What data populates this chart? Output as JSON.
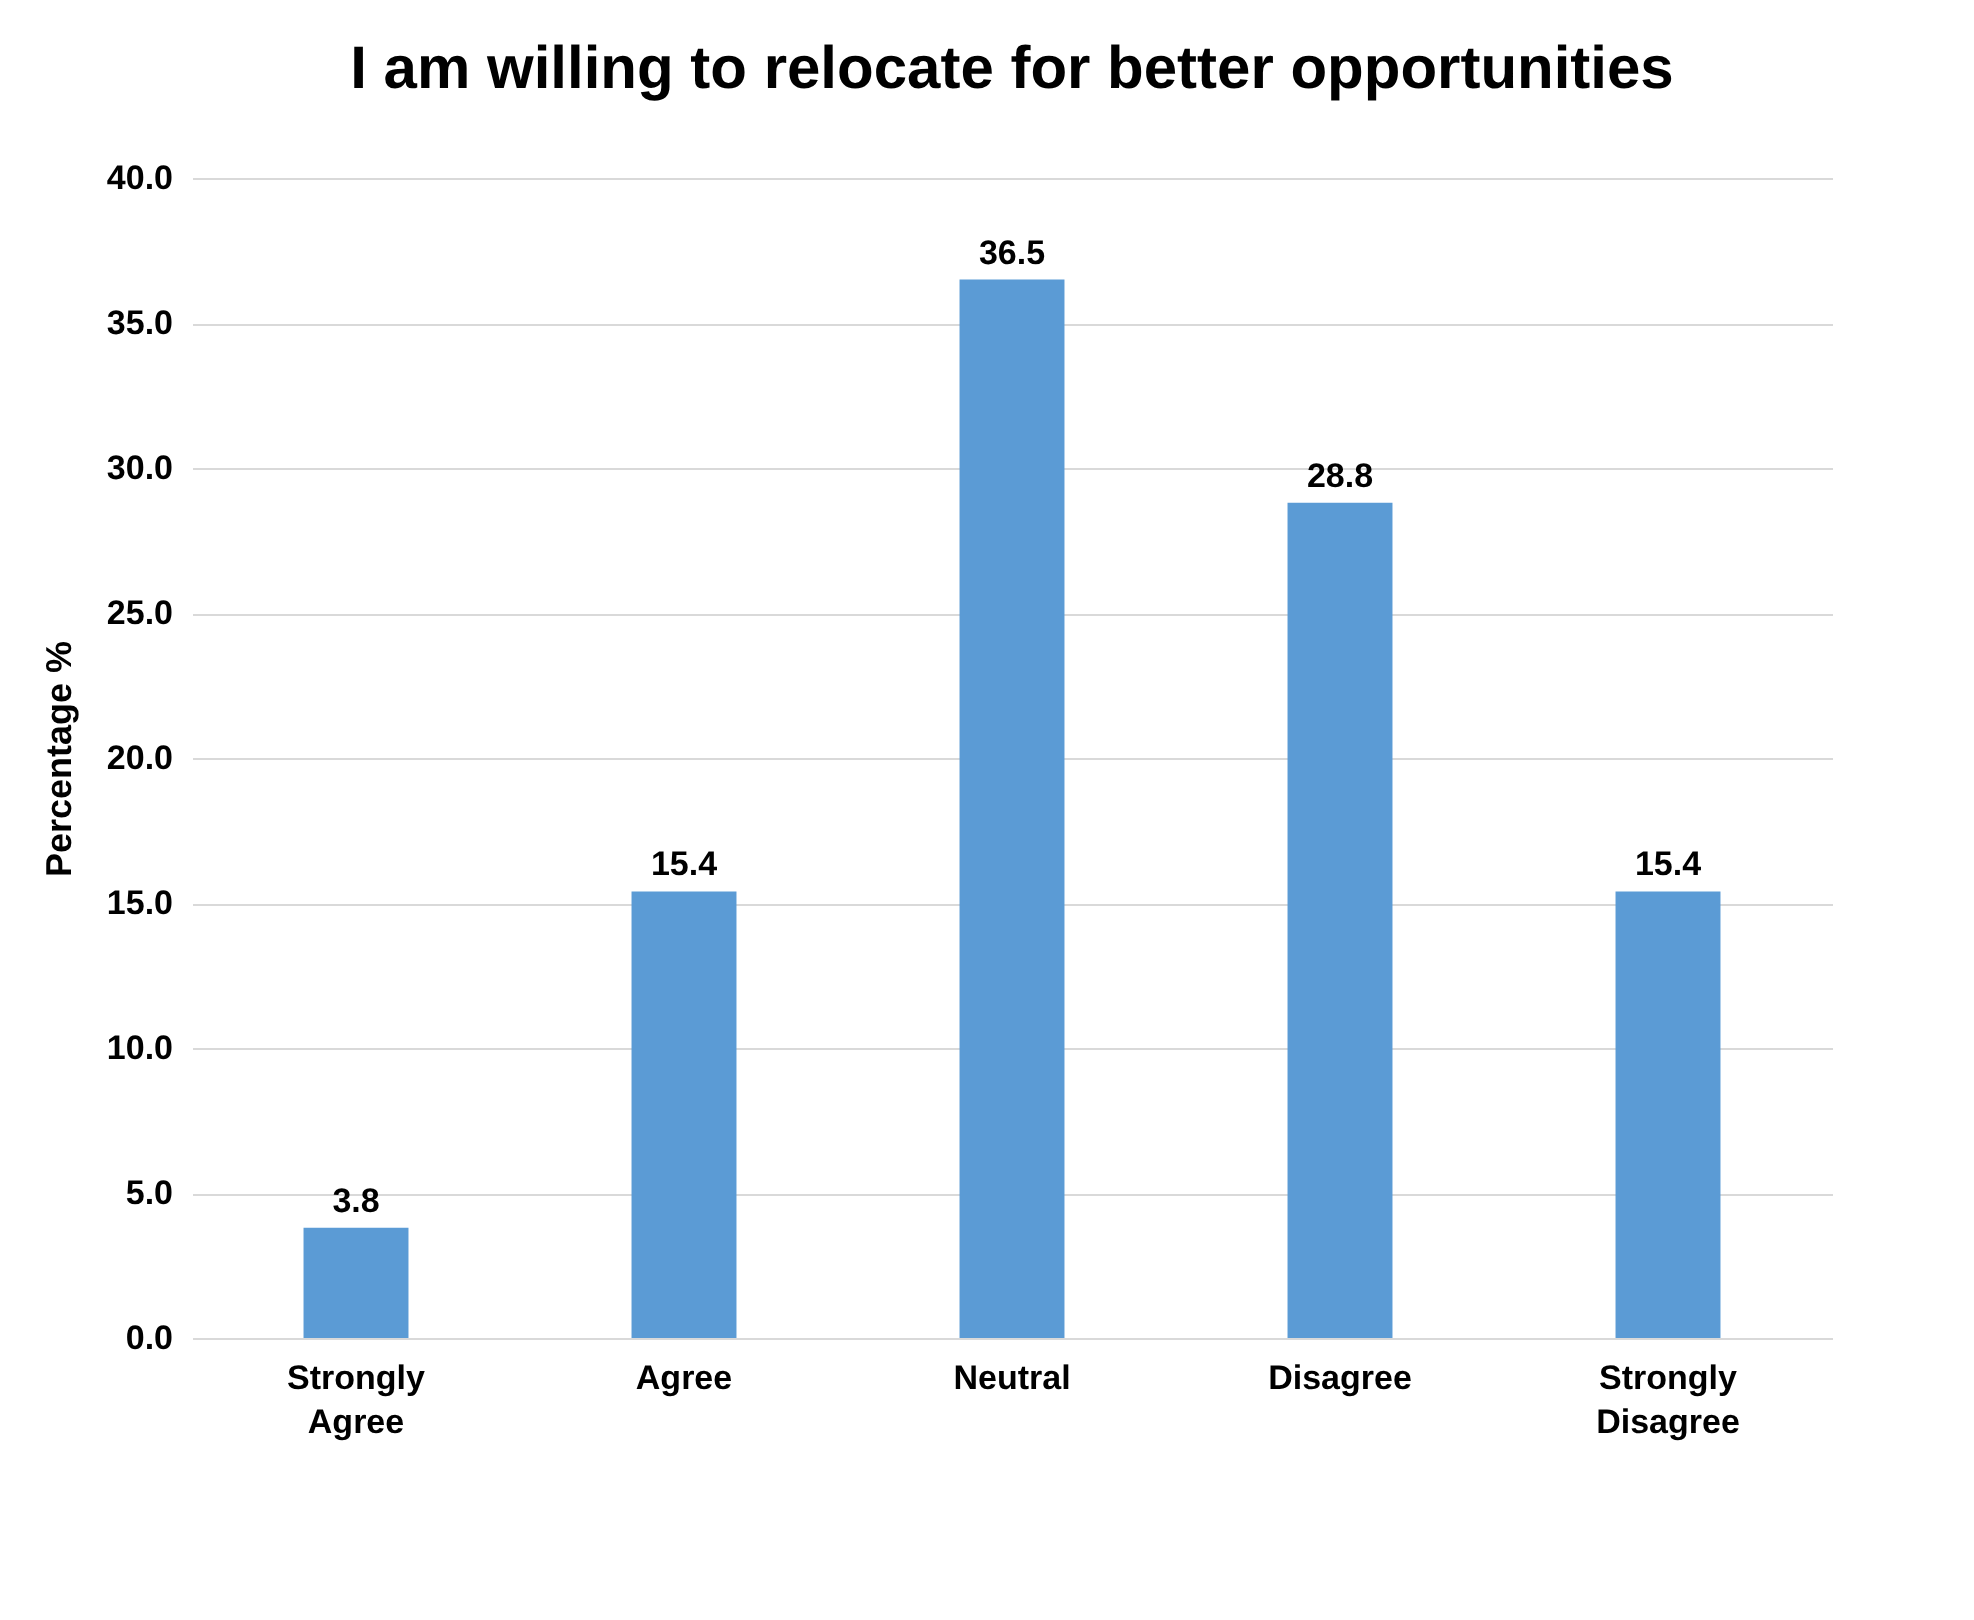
{
  "chart_data": {
    "type": "bar",
    "title": "I am willing to relocate for better opportunities",
    "ylabel": "Percentage %",
    "categories": [
      "Strongly Agree",
      "Agree",
      "Neutral",
      "Disagree",
      "Strongly Disagree"
    ],
    "values": [
      3.8,
      15.4,
      36.5,
      28.8,
      15.4
    ],
    "color": "#5b9bd5",
    "ylim": [
      0,
      40
    ],
    "yticks": [
      {
        "value": 0,
        "label": "0.0"
      },
      {
        "value": 5,
        "label": "5.0"
      },
      {
        "value": 10,
        "label": "10.0"
      },
      {
        "value": 15,
        "label": "15.0"
      },
      {
        "value": 20,
        "label": "20.0"
      },
      {
        "value": 25,
        "label": "25.0"
      },
      {
        "value": 30,
        "label": "30.0"
      },
      {
        "value": 35,
        "label": "35.0"
      },
      {
        "value": 40,
        "label": "40.0"
      }
    ],
    "grid": "y",
    "data_labels": true
  }
}
